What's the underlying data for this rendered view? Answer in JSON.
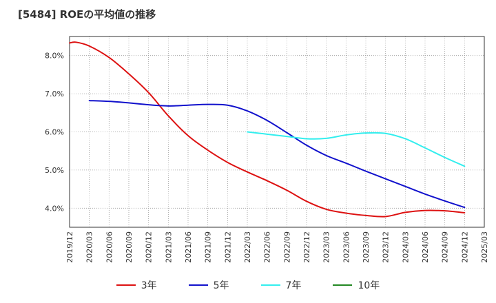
{
  "chart_data": {
    "type": "line",
    "title": "[5484]  ROEの平均値の推移",
    "xlabel": "",
    "ylabel": "",
    "ylim": [
      3.5,
      8.5
    ],
    "yticks": [
      4.0,
      5.0,
      6.0,
      7.0,
      8.0
    ],
    "ytick_labels": [
      "4.0%",
      "5.0%",
      "6.0%",
      "7.0%",
      "8.0%"
    ],
    "x_categories": [
      "2019/12",
      "2020/03",
      "2020/06",
      "2020/09",
      "2020/12",
      "2021/03",
      "2021/06",
      "2021/09",
      "2021/12",
      "2022/03",
      "2022/06",
      "2022/09",
      "2022/12",
      "2023/03",
      "2023/06",
      "2023/09",
      "2023/12",
      "2024/03",
      "2024/06",
      "2024/09",
      "2024/12",
      "2025/03"
    ],
    "grid": true,
    "legend_position": "bottom",
    "series": [
      {
        "name": "3年",
        "color": "#dd1111",
        "x": [
          0,
          0.33,
          1,
          2,
          3,
          4,
          5,
          6,
          7,
          8,
          9,
          10,
          11,
          12,
          13,
          14,
          15,
          16,
          17,
          18,
          19,
          20
        ],
        "values": [
          8.33,
          8.35,
          8.25,
          7.95,
          7.52,
          7.03,
          6.42,
          5.9,
          5.52,
          5.2,
          4.95,
          4.72,
          4.47,
          4.18,
          3.97,
          3.87,
          3.81,
          3.78,
          3.89,
          3.94,
          3.93,
          3.88
        ]
      },
      {
        "name": "5年",
        "color": "#1111cc",
        "x": [
          1,
          2,
          3,
          4,
          5,
          6,
          7,
          8,
          9,
          10,
          11,
          12,
          13,
          14,
          15,
          16,
          17,
          18,
          19,
          20
        ],
        "values": [
          6.82,
          6.8,
          6.76,
          6.71,
          6.68,
          6.7,
          6.72,
          6.7,
          6.55,
          6.3,
          5.98,
          5.65,
          5.38,
          5.18,
          4.97,
          4.77,
          4.57,
          4.37,
          4.19,
          4.02
        ]
      },
      {
        "name": "7年",
        "color": "#33eeee",
        "x": [
          9,
          10,
          11,
          12,
          13,
          14,
          15,
          16,
          17,
          18,
          19,
          20
        ],
        "values": [
          6.0,
          5.94,
          5.88,
          5.82,
          5.83,
          5.92,
          5.97,
          5.96,
          5.82,
          5.58,
          5.33,
          5.1
        ]
      },
      {
        "name": "10年",
        "color": "#228822",
        "x": [],
        "values": []
      }
    ]
  }
}
